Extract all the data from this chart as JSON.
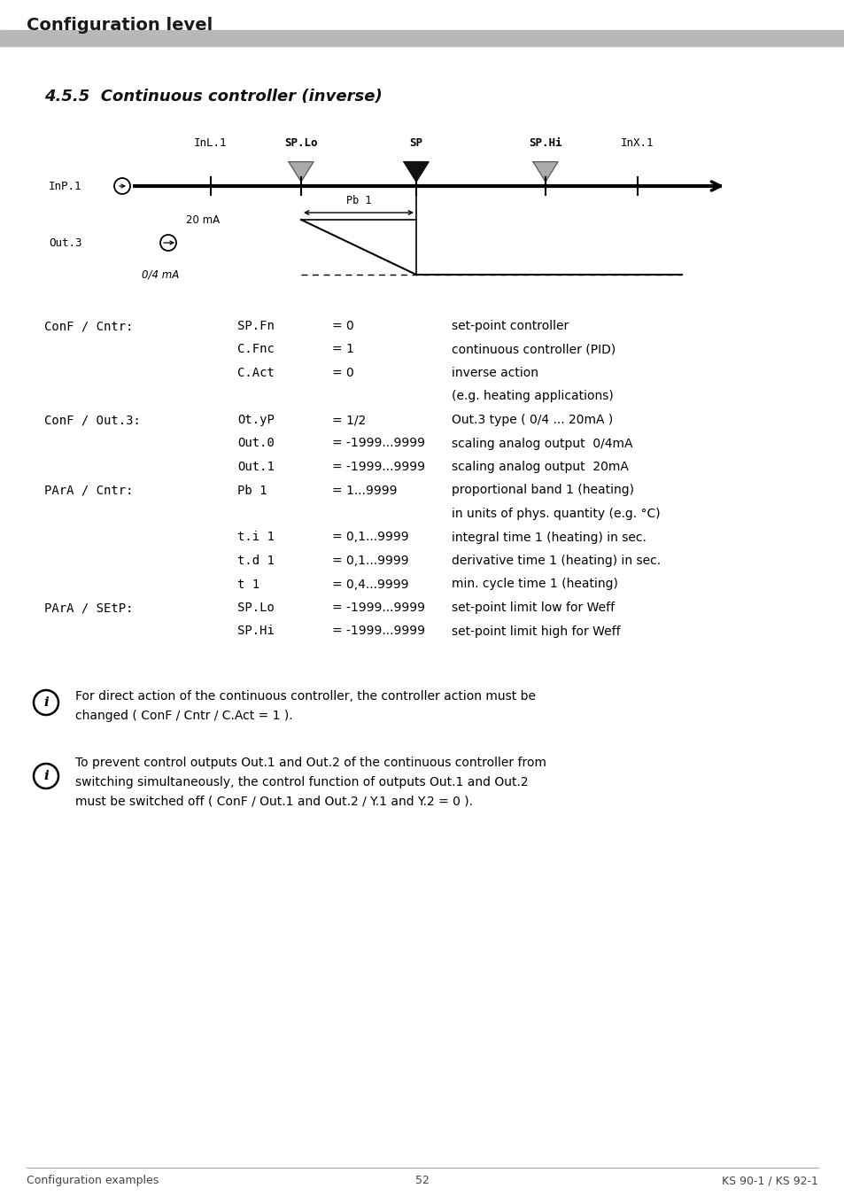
{
  "page_title": "Configuration level",
  "section_title": "4.5.5  Continuous controller (inverse)",
  "background_color": "#ffffff",
  "footer_left": "Configuration examples",
  "footer_center": "52",
  "footer_right": "KS 90-1 / KS 92-1",
  "table_rows": [
    {
      "col1": "ConF / Cntr:",
      "col2": "SP.Fn",
      "col3": "= 0",
      "col4": "set-point controller"
    },
    {
      "col1": "",
      "col2": "C.Fnc",
      "col3": "= 1",
      "col4": "continuous controller (PID)"
    },
    {
      "col1": "",
      "col2": "C.Act",
      "col3": "= 0",
      "col4": "inverse action"
    },
    {
      "col1": "",
      "col2": "",
      "col3": "",
      "col4": "(e.g. heating applications)"
    },
    {
      "col1": "ConF / Out.3:",
      "col2": "Ot.yP",
      "col3": "= 1/2",
      "col4": "Out.3 type ( 0/4 ... 20mA )"
    },
    {
      "col1": "",
      "col2": "Out.0",
      "col3": "= -1999...9999",
      "col4": "scaling analog output  0/4mA"
    },
    {
      "col1": "",
      "col2": "Out.1",
      "col3": "= -1999...9999",
      "col4": "scaling analog output  20mA"
    },
    {
      "col1": "PArA / Cntr:",
      "col2": "Pb 1",
      "col3": "= 1...9999",
      "col4": "proportional band 1 (heating)"
    },
    {
      "col1": "",
      "col2": "",
      "col3": "",
      "col4": "in units of phys. quantity (e.g. °C)"
    },
    {
      "col1": "",
      "col2": "t.i 1",
      "col3": "= 0,1...9999",
      "col4": "integral time 1 (heating) in sec."
    },
    {
      "col1": "",
      "col2": "t.d 1",
      "col3": "= 0,1...9999",
      "col4": "derivative time 1 (heating) in sec."
    },
    {
      "col1": "",
      "col2": "t 1",
      "col3": "= 0,4...9999",
      "col4": "min. cycle time 1 (heating)"
    },
    {
      "col1": "PArA / SEtP:",
      "col2": "SP.Lo",
      "col3": "= -1999...9999",
      "col4": "set-point limit low for Weff"
    },
    {
      "col1": "",
      "col2": "SP.Hi",
      "col3": "= -1999...9999",
      "col4": "set-point limit high for Weff"
    }
  ],
  "note1_line1": "For direct action of the continuous controller, the controller action must be",
  "note1_line2": "changed ( ConF / Cntr / C.Act = 1 ).",
  "note2_line1": "To prevent control outputs Out.1 and Out.2 of the continuous controller from",
  "note2_line2": "switching simultaneously, the control function of outputs Out.1 and Out.2",
  "note2_line3": "must be switched off ( ConF / Out.1 and Out.2 / Y.1 and Y.2 = 0 )."
}
